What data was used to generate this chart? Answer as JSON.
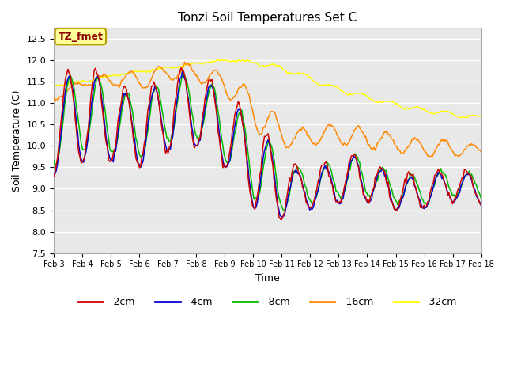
{
  "title": "Tonzi Soil Temperatures Set C",
  "xlabel": "Time",
  "ylabel": "Soil Temperature (C)",
  "ylim": [
    7.5,
    12.75
  ],
  "plot_bg_color": "#e8e8e8",
  "grid_color": "white",
  "legend_label": "TZ_fmet",
  "legend_bg": "#ffff99",
  "legend_border": "#b8a000",
  "series_colors": {
    "-2cm": "#cc0000",
    "-4cm": "#0000cc",
    "-8cm": "#00bb00",
    "-16cm": "#ff8800",
    "-32cm": "#ffff00"
  },
  "tick_labels": [
    "Feb 3",
    "Feb 4",
    "Feb 5",
    "Feb 6",
    "Feb 7",
    "Feb 8",
    "Feb 9",
    "Feb 10",
    "Feb 11",
    "Feb 12",
    "Feb 13",
    "Feb 14",
    "Feb 15",
    "Feb 16",
    "Feb 17",
    "Feb 18"
  ],
  "yticks": [
    7.5,
    8.0,
    8.5,
    9.0,
    9.5,
    10.0,
    10.5,
    11.0,
    11.5,
    12.0,
    12.5
  ]
}
